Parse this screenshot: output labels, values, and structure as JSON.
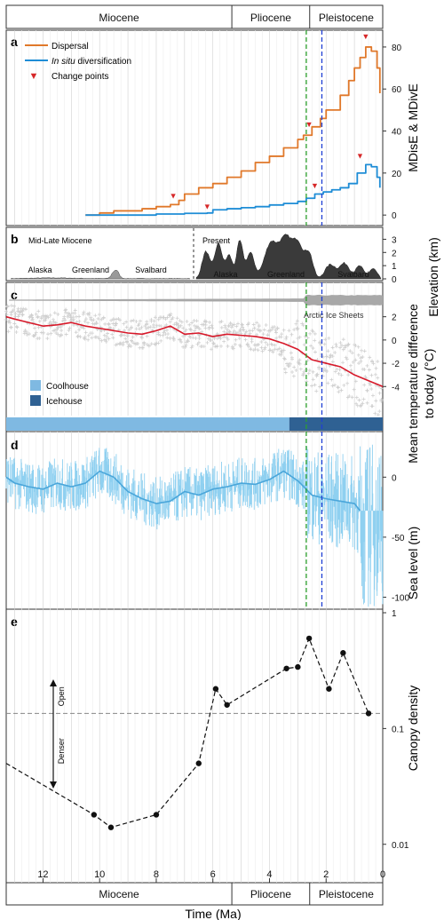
{
  "figure": {
    "xlabel": "Time (Ma)",
    "xlim": [
      13.3,
      0
    ],
    "xticks": [
      12,
      10,
      8,
      6,
      4,
      2,
      0
    ],
    "epochs": [
      {
        "name": "Miocene",
        "start": 13.3,
        "end": 5.33
      },
      {
        "name": "Pliocene",
        "start": 5.33,
        "end": 2.58
      },
      {
        "name": "Pleistocene",
        "start": 2.58,
        "end": 0
      }
    ],
    "marker_lines": [
      {
        "time": 2.7,
        "color": "#2ca02c"
      },
      {
        "time": 2.15,
        "color": "#1f3fd4"
      }
    ]
  },
  "chart_data": [
    {
      "panel": "a",
      "type": "line",
      "ylabel": "MDisE & MDivE",
      "ylim": [
        -5,
        88
      ],
      "yticks": [
        0,
        20,
        40,
        60,
        80
      ],
      "legend": [
        "Dispersal",
        "In situ diversification",
        "Change points"
      ],
      "series": [
        {
          "name": "Dispersal",
          "color": "#e0782a",
          "x": [
            10.5,
            10,
            9.5,
            9,
            8.5,
            8,
            7.5,
            7.2,
            7,
            6.5,
            6,
            5.5,
            5,
            4.5,
            4,
            3.5,
            3,
            2.8,
            2.5,
            2.2,
            2,
            1.5,
            1.2,
            1,
            0.8,
            0.6,
            0.4,
            0.2,
            0.1
          ],
          "y": [
            0,
            1,
            2,
            2,
            3,
            4,
            5,
            7,
            10,
            13,
            15,
            18,
            21,
            25,
            28,
            32,
            36,
            38,
            42,
            46,
            50,
            57,
            64,
            70,
            75,
            80,
            78,
            70,
            58
          ]
        },
        {
          "name": "In situ diversification",
          "color": "#1f8dd6",
          "x": [
            10.5,
            9,
            8,
            7,
            6.2,
            6,
            5.5,
            5,
            4.5,
            4,
            3.5,
            3,
            2.7,
            2.4,
            2.1,
            1.8,
            1.5,
            1.2,
            0.9,
            0.6,
            0.4,
            0.2,
            0.1
          ],
          "y": [
            0,
            0,
            0.5,
            0.8,
            1,
            2.5,
            3,
            3.5,
            4,
            4.8,
            5.5,
            6.5,
            8,
            10,
            11,
            12,
            13,
            15,
            20,
            24,
            23,
            18,
            13
          ]
        }
      ],
      "change_points": [
        {
          "x": 7.4,
          "y": 7
        },
        {
          "x": 6.2,
          "y": 2
        },
        {
          "x": 2.6,
          "y": 41
        },
        {
          "x": 2.4,
          "y": 12
        },
        {
          "x": 0.8,
          "y": 26
        },
        {
          "x": 0.6,
          "y": 83
        }
      ]
    },
    {
      "panel": "b",
      "type": "area",
      "ylabel": "Elevation (km)",
      "ylim": [
        0,
        3.5
      ],
      "yticks": [
        0,
        1,
        2,
        3
      ],
      "left_title": "Mid-Late Miocene",
      "right_title": "Present",
      "regions": [
        "Alaska",
        "Greenland",
        "Svalbard"
      ]
    },
    {
      "panel": "c",
      "type": "line",
      "ylabel_lines": [
        "Mean temperature difference",
        "to today (°C)"
      ],
      "ylim": [
        -6.5,
        4.8
      ],
      "yticks": [
        -4,
        -2,
        0,
        2
      ],
      "ice_label": "Arctic Ice Sheets",
      "legend": [
        {
          "name": "Coolhouse",
          "color": "#7fb9e2"
        },
        {
          "name": "Icehouse",
          "color": "#2f6193"
        }
      ],
      "climate_bar": [
        {
          "state": "Coolhouse",
          "start": 13.3,
          "end": 3.3
        },
        {
          "state": "Icehouse",
          "start": 3.3,
          "end": 0
        }
      ],
      "series": [
        {
          "name": "Mean temperature difference",
          "color": "#d7192a",
          "x": [
            13.3,
            13,
            12.5,
            12,
            11.5,
            11,
            10.5,
            10,
            9.5,
            9,
            8.5,
            8,
            7.5,
            7,
            6.5,
            6,
            5.5,
            5,
            4.5,
            4,
            3.5,
            3,
            2.5,
            2,
            1.5,
            1,
            0.5,
            0
          ],
          "y": [
            2,
            1.8,
            1.5,
            1.2,
            1.3,
            1.5,
            1.2,
            1,
            0.8,
            0.6,
            0.5,
            0.8,
            1.2,
            0.5,
            0.6,
            0.3,
            0.5,
            0.4,
            0.3,
            0.1,
            -0.3,
            -0.8,
            -1.7,
            -2,
            -2.3,
            -3,
            -3.5,
            -4
          ]
        }
      ]
    },
    {
      "panel": "d",
      "type": "line",
      "ylabel": "Sea level (m)",
      "ylim": [
        -110,
        35
      ],
      "yticks": [
        0,
        -50,
        -100
      ],
      "series": [
        {
          "name": "Sea level",
          "color": "#4aa6da",
          "x": [
            13.3,
            13,
            12.5,
            12,
            11.5,
            11,
            10.5,
            10,
            9.5,
            9,
            8.5,
            8,
            7.5,
            7,
            6.5,
            6,
            5.5,
            5,
            4.5,
            4,
            3.5,
            3,
            2.5,
            2,
            1.5,
            1,
            0.8
          ],
          "y": [
            0,
            -5,
            -8,
            -10,
            -5,
            -8,
            -5,
            5,
            0,
            -12,
            -18,
            -22,
            -20,
            -12,
            -15,
            -10,
            -8,
            -5,
            -6,
            -2,
            5,
            -3,
            -15,
            -18,
            -20,
            -22,
            -28
          ]
        }
      ]
    },
    {
      "panel": "e",
      "type": "scatter",
      "ylabel": "Canopy density",
      "yscale": "log",
      "ylim": [
        0.005,
        1
      ],
      "yticks": [
        0.01,
        0.1,
        1
      ],
      "ytick_labels": [
        "0.01",
        "0.1",
        "1"
      ],
      "threshold": 0.135,
      "arrow_labels": [
        "Open",
        "Denser"
      ],
      "x": [
        10.2,
        9.6,
        8,
        6.5,
        5.9,
        5.5,
        3.4,
        3,
        2.6,
        1.9,
        1.4,
        0.5
      ],
      "y": [
        0.018,
        0.014,
        0.018,
        0.05,
        0.22,
        0.16,
        0.33,
        0.34,
        0.6,
        0.22,
        0.45,
        0.135
      ]
    }
  ]
}
